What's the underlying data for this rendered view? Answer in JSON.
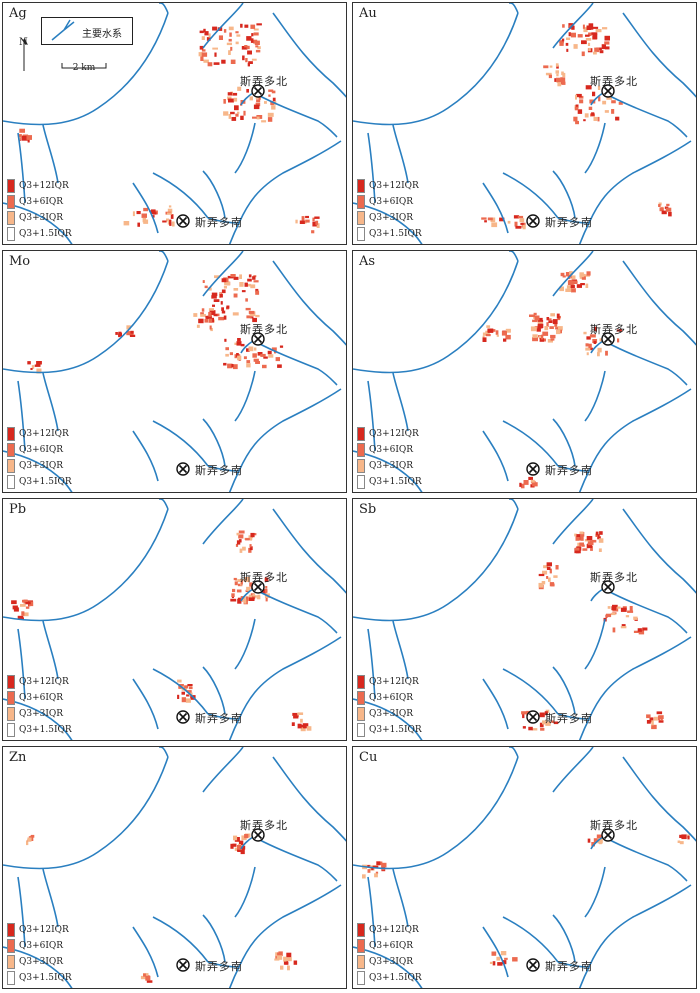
{
  "mines": {
    "north": "斯弄多北",
    "south": "斯弄多南"
  },
  "legend": [
    {
      "label": "Q3+12IQR",
      "color": "#d7281e"
    },
    {
      "label": "Q3+6IQR",
      "color": "#ec6a4f"
    },
    {
      "label": "Q3+3IQR",
      "color": "#f7b78a"
    },
    {
      "label": "Q3+1.5IQR",
      "color": "#ffffff"
    }
  ],
  "map_key": {
    "river_label": "主要水系",
    "north_label": "N",
    "scale_label": "2 km"
  },
  "colors": {
    "river": "#2a7fc0",
    "strong": "#d7281e",
    "medium": "#ec6a4f",
    "weak": "#f7b78a"
  },
  "panels": [
    {
      "element": "Ag"
    },
    {
      "element": "Au"
    },
    {
      "element": "Mo"
    },
    {
      "element": "As"
    },
    {
      "element": "Pb"
    },
    {
      "element": "Sb"
    },
    {
      "element": "Zn"
    },
    {
      "element": "Cu"
    }
  ]
}
